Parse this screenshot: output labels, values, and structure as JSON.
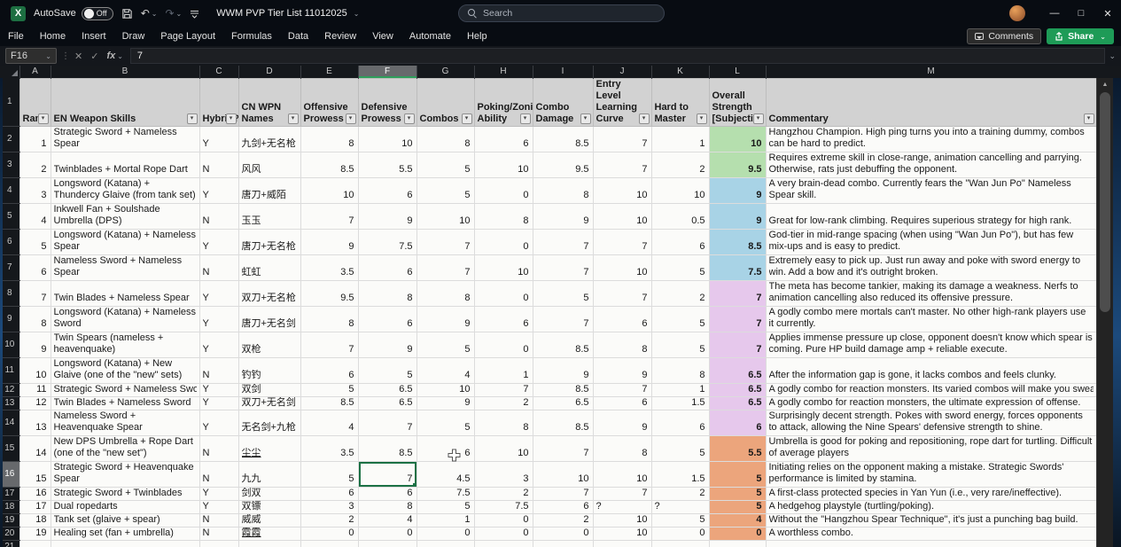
{
  "titlebar": {
    "app_initial": "X",
    "autosave_label": "AutoSave",
    "autosave_state": "Off",
    "doc_title": "WWM PVP Tier List 11012025",
    "search_placeholder": "Search"
  },
  "ribbon": {
    "tabs": [
      "File",
      "Home",
      "Insert",
      "Draw",
      "Page Layout",
      "Formulas",
      "Data",
      "Review",
      "View",
      "Automate",
      "Help"
    ],
    "comments_label": "Comments",
    "share_label": "Share"
  },
  "formula_bar": {
    "name_box": "F16",
    "cancel_glyph": "✕",
    "enter_glyph": "✓",
    "fx_label": "fx",
    "formula_value": "7"
  },
  "grid": {
    "selected_cell": "F16",
    "selected_column": "F",
    "selected_row": 16,
    "column_letters": [
      "A",
      "B",
      "C",
      "D",
      "E",
      "F",
      "G",
      "H",
      "I",
      "J",
      "K",
      "L",
      "M"
    ],
    "headers": [
      "Rank",
      "EN Weapon Skills",
      "Hybrid?",
      "CN WPN Names",
      "Offensive Prowess",
      "Defensive Prowess",
      "Combos",
      "Poking/Zoning Ability",
      "Combo Damage",
      "Entry Level Learning Curve",
      "Hard to Master",
      "Overall Strength [Subjective",
      "Commentary"
    ],
    "tier_colors": {
      "green": "#b5dfae",
      "blue": "#a8d3e6",
      "pink": "#e6c8ec",
      "orange": "#eca57c"
    },
    "rows": [
      {
        "row": 2,
        "rank": 1,
        "weapon": "Strategic Sword + Nameless Spear",
        "hybrid": "Y",
        "cn": "九剑+无名枪",
        "scores": [
          8,
          10,
          8,
          6,
          8.5,
          7,
          1
        ],
        "overall": 10,
        "tier": "green",
        "commentary": "Hangzhou Champion. High ping turns you into a training dummy, combos can be hard to predict."
      },
      {
        "row": 3,
        "rank": 2,
        "weapon": "Twinblades + Mortal Rope Dart",
        "hybrid": "N",
        "cn": "风风",
        "scores": [
          8.5,
          5.5,
          5,
          10,
          9.5,
          7,
          2
        ],
        "overall": 9.5,
        "tier": "green",
        "commentary": "Requires extreme skill in close-range, animation cancelling and parrying. Otherwise, rats just debuffing the opponent."
      },
      {
        "row": 4,
        "rank": 3,
        "weapon": "Longsword (Katana) + Thundercy Glaive (from tank set)",
        "hybrid": "Y",
        "cn": "唐刀+威陌",
        "scores": [
          10,
          6,
          5,
          0,
          8,
          10,
          10
        ],
        "overall": 9,
        "tier": "blue",
        "commentary": "A very brain-dead combo. Currently fears the \"Wan Jun Po\" Nameless Spear skill."
      },
      {
        "row": 5,
        "rank": 4,
        "weapon": "Inkwell Fan + Soulshade Umbrella (DPS)",
        "hybrid": "N",
        "cn": "玉玉",
        "scores": [
          7,
          9,
          10,
          8,
          9,
          10,
          0.5
        ],
        "overall": 9,
        "tier": "blue",
        "commentary": "Great for low-rank climbing. Requires superious strategy for high rank."
      },
      {
        "row": 6,
        "rank": 5,
        "weapon": "Longsword (Katana) + Nameless Spear",
        "hybrid": "Y",
        "cn": "唐刀+无名枪",
        "scores": [
          9,
          7.5,
          7,
          0,
          7,
          7,
          6
        ],
        "overall": 8.5,
        "tier": "blue",
        "commentary": "God-tier in mid-range spacing (when using \"Wan Jun Po\"), but has few mix-ups and is easy to predict."
      },
      {
        "row": 7,
        "rank": 6,
        "weapon": "Nameless Sword + Nameless Spear",
        "hybrid": "N",
        "cn": "虹虹",
        "scores": [
          3.5,
          6,
          7,
          10,
          7,
          10,
          5
        ],
        "overall": 7.5,
        "tier": "blue",
        "commentary": "Extremely easy to pick up. Just run away and poke with sword energy to win. Add a bow and it's outright broken."
      },
      {
        "row": 8,
        "rank": 7,
        "weapon": "Twin Blades + Nameless Spear",
        "hybrid": "Y",
        "cn": "双刀+无名枪",
        "scores": [
          9.5,
          8,
          8,
          0,
          5,
          7,
          2
        ],
        "overall": 7,
        "tier": "pink",
        "commentary": "The meta has become tankier, making its damage a weakness. Nerfs to animation cancelling also reduced its offensive pressure."
      },
      {
        "row": 9,
        "rank": 8,
        "weapon": "Longsword (Katana) + Nameless Sword",
        "hybrid": "Y",
        "cn": "唐刀+无名剑",
        "scores": [
          8,
          6,
          9,
          6,
          7,
          6,
          5
        ],
        "overall": 7,
        "tier": "pink",
        "commentary": "A godly combo mere mortals can't master. No other high-rank players use it currently."
      },
      {
        "row": 10,
        "rank": 9,
        "weapon": "Twin Spears (nameless + heavenquake)",
        "hybrid": "Y",
        "cn": "双枪",
        "scores": [
          7,
          9,
          5,
          0,
          8.5,
          8,
          5
        ],
        "overall": 7,
        "tier": "pink",
        "commentary": "Applies immense pressure up close, opponent doesn't know which spear is coming. Pure HP build damage amp + reliable execute."
      },
      {
        "row": 11,
        "rank": 10,
        "weapon": "Longsword (Katana) + New Glaive (one of the \"new\" sets)",
        "hybrid": "N",
        "cn": "钓钓",
        "scores": [
          6,
          5,
          4,
          1,
          9,
          9,
          8
        ],
        "overall": 6.5,
        "tier": "pink",
        "commentary": "After the information gap is gone, it lacks combos and feels clunky."
      },
      {
        "row": 12,
        "rank": 11,
        "weapon": "Strategic Sword + Nameless Sword",
        "hybrid": "Y",
        "cn": "双剑",
        "scores": [
          5,
          6.5,
          10,
          7,
          8.5,
          7,
          1
        ],
        "overall": 6.5,
        "tier": "pink",
        "commentary": "A godly combo for reaction monsters. Its varied combos will make you sweat"
      },
      {
        "row": 13,
        "rank": 12,
        "weapon": "Twin Blades + Nameless Sword",
        "hybrid": "Y",
        "cn": "双刀+无名剑",
        "scores": [
          8.5,
          6.5,
          9,
          2,
          6.5,
          6,
          1.5
        ],
        "overall": 6.5,
        "tier": "pink",
        "commentary": "A godly combo for reaction monsters, the ultimate expression of offense."
      },
      {
        "row": 14,
        "rank": 13,
        "weapon": "Nameless Sword + Heavenquake Spear",
        "hybrid": "Y",
        "cn": "无名剑+九枪",
        "scores": [
          4,
          7,
          5,
          8,
          8.5,
          9,
          6
        ],
        "overall": 6,
        "tier": "pink",
        "commentary": "Surprisingly decent strength. Pokes with sword energy, forces opponents to attack, allowing the Nine Spears' defensive strength to shine."
      },
      {
        "row": 15,
        "rank": 14,
        "weapon": "New DPS Umbrella + Rope Dart (one of the \"new set\")",
        "hybrid": "N",
        "cn": "尘尘",
        "cn_underline": true,
        "scores": [
          3.5,
          8.5,
          6,
          10,
          7,
          8,
          5
        ],
        "overall": 5.5,
        "tier": "orange",
        "commentary": "Umbrella is good for poking and repositioning, rope dart for turtling. Difficult of average players"
      },
      {
        "row": 16,
        "rank": 15,
        "weapon": "Strategic Sword + Heavenquake Spear",
        "hybrid": "N",
        "cn": "九九",
        "scores": [
          5,
          7,
          4.5,
          3,
          10,
          10,
          1.5
        ],
        "overall": 5,
        "tier": "orange",
        "commentary": "Initiating relies on the opponent making a mistake. Strategic Swords' performance is limited by stamina."
      },
      {
        "row": 17,
        "rank": 16,
        "weapon": "Strategic Sword + Twinblades",
        "hybrid": "Y",
        "cn": "剑双",
        "scores": [
          6,
          6,
          7.5,
          2,
          7,
          7,
          2
        ],
        "overall": 5,
        "tier": "orange",
        "commentary": "A first-class protected species in Yan Yun (i.e., very rare/ineffective)."
      },
      {
        "row": 18,
        "rank": 17,
        "weapon": "Dual ropedarts",
        "hybrid": "Y",
        "cn": "双镖",
        "scores": [
          3,
          8,
          5,
          7.5,
          6,
          "?",
          "?"
        ],
        "overall": 5,
        "tier": "orange",
        "commentary": "A hedgehog playstyle (turtling/poking)."
      },
      {
        "row": 19,
        "rank": 18,
        "weapon": "Tank set (glaive + spear)",
        "hybrid": "N",
        "cn": "威威",
        "scores": [
          2,
          4,
          1,
          0,
          2,
          10,
          5
        ],
        "overall": 4,
        "tier": "orange",
        "commentary": "Without the \"Hangzhou Spear Technique\", it's just a punching bag build."
      },
      {
        "row": 20,
        "rank": 19,
        "weapon": "Healing set (fan + umbrella)",
        "hybrid": "N",
        "cn": "霞霞",
        "cn_underline": true,
        "scores": [
          0,
          0,
          0,
          0,
          0,
          10,
          0
        ],
        "overall": 0,
        "tier": "orange",
        "commentary": "A worthless combo."
      }
    ],
    "empty_rows": [
      21,
      22
    ]
  }
}
